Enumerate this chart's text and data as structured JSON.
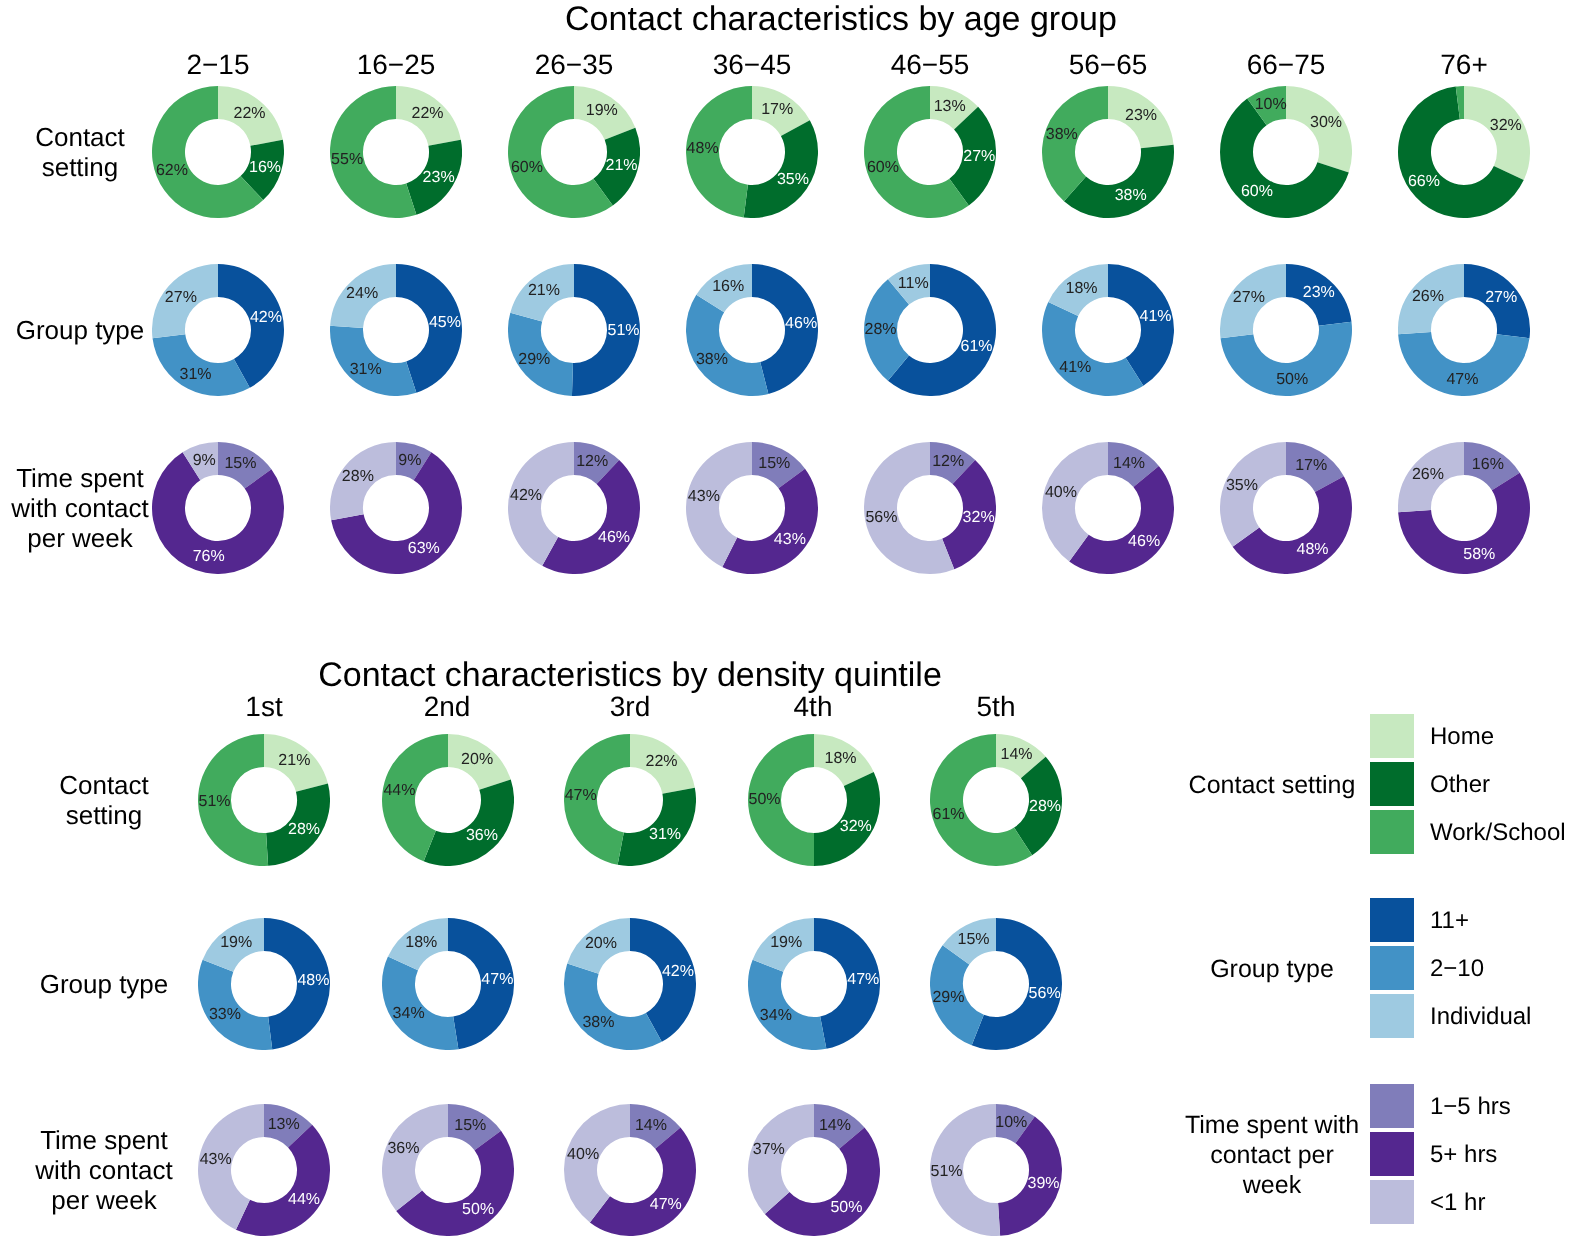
{
  "chart_data": [
    {
      "type": "donut",
      "annotations": [
        "Contact characteristics by age group"
      ],
      "title": "2−15",
      "ylabel": "Contact setting",
      "legend": "right",
      "legend_title": "Contact setting",
      "categories": [
        "Home",
        "Other",
        "Work/School"
      ],
      "values": [
        22,
        16,
        62
      ],
      "colors": [
        "#c7e9c0",
        "#006d2c",
        "#41ab5d"
      ],
      "value_labels": [
        "22%",
        "16%",
        "62%"
      ]
    },
    {
      "type": "donut",
      "title": "16−25",
      "values": [
        22,
        23,
        55
      ],
      "colors": [
        "#c7e9c0",
        "#006d2c",
        "#41ab5d"
      ],
      "value_labels": [
        "22%",
        "23%",
        "55%"
      ]
    },
    {
      "type": "donut",
      "title": "26−35",
      "values": [
        19,
        21,
        60
      ],
      "colors": [
        "#c7e9c0",
        "#006d2c",
        "#41ab5d"
      ],
      "value_labels": [
        "19%",
        "21%",
        "60%"
      ]
    },
    {
      "type": "donut",
      "title": "36−45",
      "values": [
        17,
        35,
        48
      ],
      "colors": [
        "#c7e9c0",
        "#006d2c",
        "#41ab5d"
      ],
      "value_labels": [
        "17%",
        "35%",
        "48%"
      ]
    },
    {
      "type": "donut",
      "title": "46−55",
      "values": [
        13,
        27,
        60
      ],
      "colors": [
        "#c7e9c0",
        "#006d2c",
        "#41ab5d"
      ],
      "value_labels": [
        "13%",
        "27%",
        "60%"
      ]
    },
    {
      "type": "donut",
      "title": "56−65",
      "values": [
        23,
        38,
        38
      ],
      "colors": [
        "#c7e9c0",
        "#006d2c",
        "#41ab5d"
      ],
      "value_labels": [
        "23%",
        "38%",
        "38%"
      ]
    },
    {
      "type": "donut",
      "title": "66−75",
      "values": [
        30,
        60,
        10
      ],
      "colors": [
        "#c7e9c0",
        "#006d2c",
        "#41ab5d"
      ],
      "value_labels": [
        "30%",
        "60%",
        "10%"
      ]
    },
    {
      "type": "donut",
      "title": "76+",
      "values": [
        32,
        66,
        2
      ],
      "colors": [
        "#c7e9c0",
        "#006d2c",
        "#41ab5d"
      ],
      "value_labels": [
        "32%",
        "66%",
        null
      ]
    },
    {
      "type": "donut",
      "ylabel": "Group type",
      "legend": "right",
      "legend_title": "Group type",
      "categories": [
        "11+",
        "2−10",
        "Individual"
      ],
      "values": [
        42,
        31,
        27
      ],
      "colors": [
        "#08519c",
        "#4292c6",
        "#9ecae1"
      ],
      "value_labels": [
        "42%",
        "31%",
        "27%"
      ]
    },
    {
      "type": "donut",
      "values": [
        45,
        31,
        24
      ],
      "colors": [
        "#08519c",
        "#4292c6",
        "#9ecae1"
      ],
      "value_labels": [
        "45%",
        "31%",
        "24%"
      ]
    },
    {
      "type": "donut",
      "values": [
        51,
        29,
        21
      ],
      "colors": [
        "#08519c",
        "#4292c6",
        "#9ecae1"
      ],
      "value_labels": [
        "51%",
        "29%",
        "21%"
      ]
    },
    {
      "type": "donut",
      "values": [
        46,
        38,
        16
      ],
      "colors": [
        "#08519c",
        "#4292c6",
        "#9ecae1"
      ],
      "value_labels": [
        "46%",
        "38%",
        "16%"
      ]
    },
    {
      "type": "donut",
      "values": [
        61,
        28,
        11
      ],
      "colors": [
        "#08519c",
        "#4292c6",
        "#9ecae1"
      ],
      "value_labels": [
        "61%",
        "28%",
        "11%"
      ]
    },
    {
      "type": "donut",
      "values": [
        41,
        41,
        18
      ],
      "colors": [
        "#08519c",
        "#4292c6",
        "#9ecae1"
      ],
      "value_labels": [
        "41%",
        "41%",
        "18%"
      ]
    },
    {
      "type": "donut",
      "values": [
        23,
        50,
        27
      ],
      "colors": [
        "#08519c",
        "#4292c6",
        "#9ecae1"
      ],
      "value_labels": [
        "23%",
        "50%",
        "27%"
      ]
    },
    {
      "type": "donut",
      "values": [
        27,
        47,
        26
      ],
      "colors": [
        "#08519c",
        "#4292c6",
        "#9ecae1"
      ],
      "value_labels": [
        "27%",
        "47%",
        "26%"
      ]
    },
    {
      "type": "donut",
      "ylabel": "Time spent with contact per week",
      "legend": "right",
      "legend_title": "Time spent with contact per week",
      "categories": [
        "1−5 hrs",
        "5+ hrs",
        "<1 hr"
      ],
      "values": [
        15,
        76,
        9
      ],
      "colors": [
        "#807dba",
        "#54278f",
        "#bcbddc"
      ],
      "value_labels": [
        "15%",
        "76%",
        "9%"
      ]
    },
    {
      "type": "donut",
      "values": [
        9,
        63,
        28
      ],
      "colors": [
        "#807dba",
        "#54278f",
        "#bcbddc"
      ],
      "value_labels": [
        "9%",
        "63%",
        "28%"
      ]
    },
    {
      "type": "donut",
      "values": [
        12,
        46,
        42
      ],
      "colors": [
        "#807dba",
        "#54278f",
        "#bcbddc"
      ],
      "value_labels": [
        "12%",
        "46%",
        "42%"
      ]
    },
    {
      "type": "donut",
      "values": [
        15,
        43,
        43
      ],
      "colors": [
        "#807dba",
        "#54278f",
        "#bcbddc"
      ],
      "value_labels": [
        "15%",
        "43%",
        "43%"
      ]
    },
    {
      "type": "donut",
      "values": [
        12,
        32,
        56
      ],
      "colors": [
        "#807dba",
        "#54278f",
        "#bcbddc"
      ],
      "value_labels": [
        "12%",
        "32%",
        "56%"
      ]
    },
    {
      "type": "donut",
      "values": [
        14,
        46,
        40
      ],
      "colors": [
        "#807dba",
        "#54278f",
        "#bcbddc"
      ],
      "value_labels": [
        "14%",
        "46%",
        "40%"
      ]
    },
    {
      "type": "donut",
      "values": [
        17,
        48,
        35
      ],
      "colors": [
        "#807dba",
        "#54278f",
        "#bcbddc"
      ],
      "value_labels": [
        "17%",
        "48%",
        "35%"
      ]
    },
    {
      "type": "donut",
      "values": [
        16,
        58,
        26
      ],
      "colors": [
        "#807dba",
        "#54278f",
        "#bcbddc"
      ],
      "value_labels": [
        "16%",
        "58%",
        "26%"
      ]
    },
    {
      "type": "donut",
      "annotations": [
        "Contact characteristics by density quintile"
      ],
      "title": "1st",
      "ylabel": "Contact setting",
      "values": [
        21,
        28,
        51
      ],
      "colors": [
        "#c7e9c0",
        "#006d2c",
        "#41ab5d"
      ],
      "value_labels": [
        "21%",
        "28%",
        "51%"
      ]
    },
    {
      "type": "donut",
      "title": "2nd",
      "values": [
        20,
        36,
        44
      ],
      "colors": [
        "#c7e9c0",
        "#006d2c",
        "#41ab5d"
      ],
      "value_labels": [
        "20%",
        "36%",
        "44%"
      ]
    },
    {
      "type": "donut",
      "title": "3rd",
      "values": [
        22,
        31,
        47
      ],
      "colors": [
        "#c7e9c0",
        "#006d2c",
        "#41ab5d"
      ],
      "value_labels": [
        "22%",
        "31%",
        "47%"
      ]
    },
    {
      "type": "donut",
      "title": "4th",
      "values": [
        18,
        32,
        50
      ],
      "colors": [
        "#c7e9c0",
        "#006d2c",
        "#41ab5d"
      ],
      "value_labels": [
        "18%",
        "32%",
        "50%"
      ]
    },
    {
      "type": "donut",
      "title": "5th",
      "values": [
        14,
        28,
        61
      ],
      "colors": [
        "#c7e9c0",
        "#006d2c",
        "#41ab5d"
      ],
      "value_labels": [
        "14%",
        "28%",
        "61%"
      ]
    },
    {
      "type": "donut",
      "ylabel": "Group type",
      "values": [
        48,
        33,
        19
      ],
      "colors": [
        "#08519c",
        "#4292c6",
        "#9ecae1"
      ],
      "value_labels": [
        "48%",
        "33%",
        "19%"
      ]
    },
    {
      "type": "donut",
      "values": [
        47,
        34,
        18
      ],
      "colors": [
        "#08519c",
        "#4292c6",
        "#9ecae1"
      ],
      "value_labels": [
        "47%",
        "34%",
        "18%"
      ]
    },
    {
      "type": "donut",
      "values": [
        42,
        38,
        20
      ],
      "colors": [
        "#08519c",
        "#4292c6",
        "#9ecae1"
      ],
      "value_labels": [
        "42%",
        "38%",
        "20%"
      ]
    },
    {
      "type": "donut",
      "values": [
        47,
        34,
        19
      ],
      "colors": [
        "#08519c",
        "#4292c6",
        "#9ecae1"
      ],
      "value_labels": [
        "47%",
        "34%",
        "19%"
      ]
    },
    {
      "type": "donut",
      "values": [
        56,
        29,
        15
      ],
      "colors": [
        "#08519c",
        "#4292c6",
        "#9ecae1"
      ],
      "value_labels": [
        "56%",
        "29%",
        "15%"
      ]
    },
    {
      "type": "donut",
      "ylabel": "Time spent with contact per week",
      "values": [
        13,
        44,
        43
      ],
      "colors": [
        "#807dba",
        "#54278f",
        "#bcbddc"
      ],
      "value_labels": [
        "13%",
        "44%",
        "43%"
      ]
    },
    {
      "type": "donut",
      "values": [
        15,
        50,
        36
      ],
      "colors": [
        "#807dba",
        "#54278f",
        "#bcbddc"
      ],
      "value_labels": [
        "15%",
        "50%",
        "36%"
      ]
    },
    {
      "type": "donut",
      "values": [
        14,
        47,
        40
      ],
      "colors": [
        "#807dba",
        "#54278f",
        "#bcbddc"
      ],
      "value_labels": [
        "14%",
        "47%",
        "40%"
      ]
    },
    {
      "type": "donut",
      "values": [
        14,
        50,
        37
      ],
      "colors": [
        "#807dba",
        "#54278f",
        "#bcbddc"
      ],
      "value_labels": [
        "14%",
        "50%",
        "37%"
      ]
    },
    {
      "type": "donut",
      "values": [
        10,
        39,
        51
      ],
      "colors": [
        "#807dba",
        "#54278f",
        "#bcbddc"
      ],
      "value_labels": [
        "10%",
        "39%",
        "51%"
      ]
    }
  ]
}
